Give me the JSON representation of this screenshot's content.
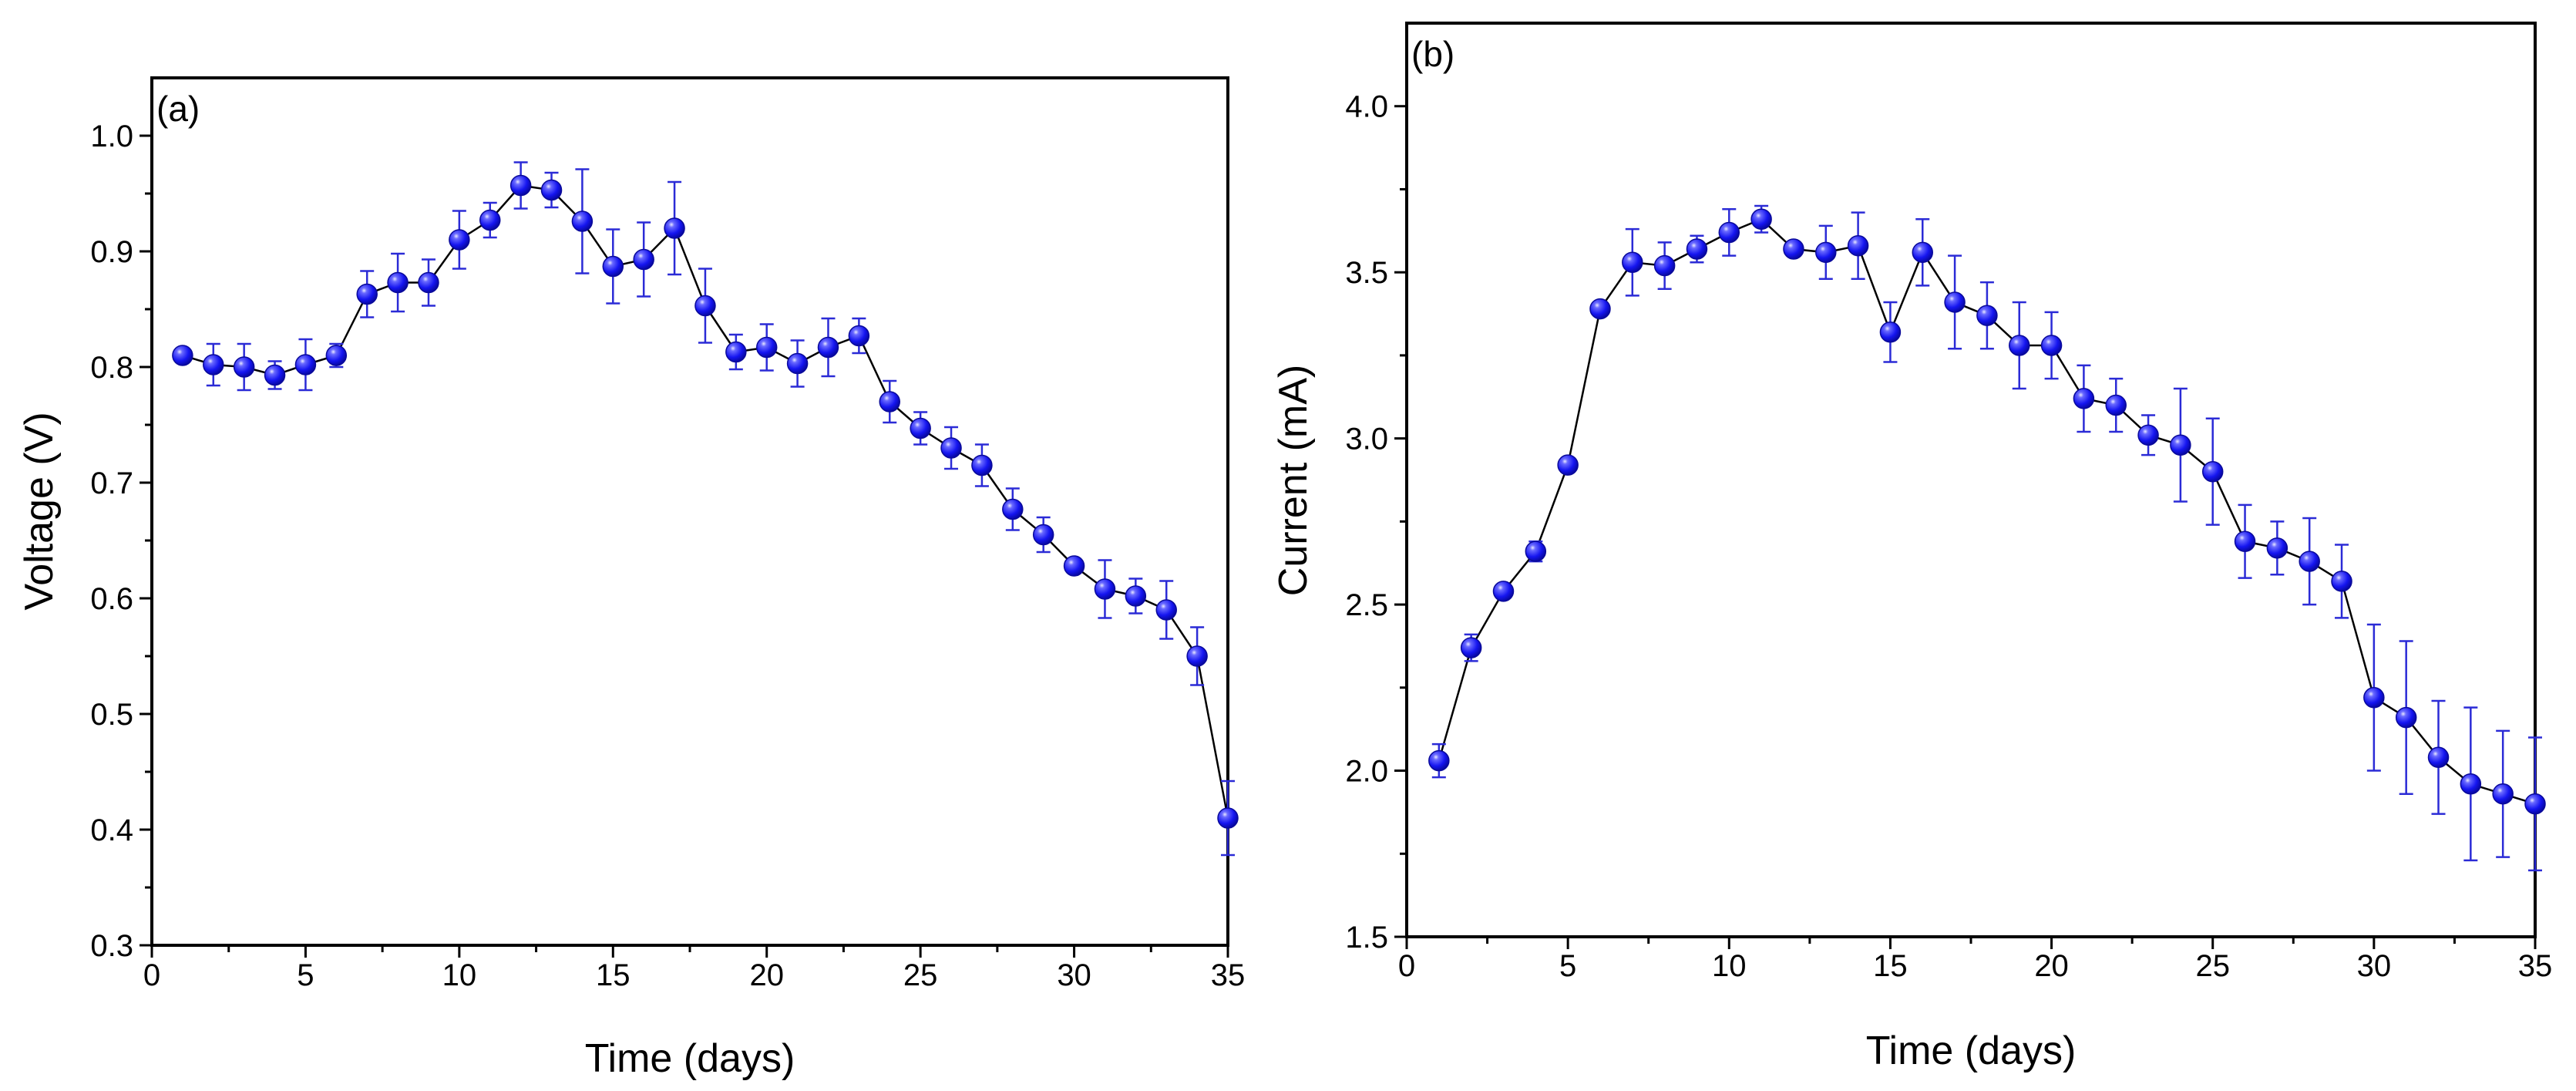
{
  "chart_data": [
    {
      "type": "line",
      "panel_label": "(a)",
      "title": "",
      "xlabel": "Time (days)",
      "ylabel": "Voltage (V)",
      "xlim": [
        0,
        35
      ],
      "ylim": [
        0.3,
        1.05
      ],
      "xticks": [
        0,
        5,
        10,
        15,
        20,
        25,
        30,
        35
      ],
      "xtick_labels": [
        "0",
        "5",
        "10",
        "15",
        "20",
        "25",
        "30",
        "35"
      ],
      "yticks": [
        0.3,
        0.4,
        0.5,
        0.6,
        0.7,
        0.8,
        0.9,
        1.0
      ],
      "ytick_labels": [
        "0.3",
        "0.4",
        "0.5",
        "0.6",
        "0.7",
        "0.8",
        "0.9",
        "1.0"
      ],
      "grid": false,
      "marker_color": "#1a1aff",
      "errorbar_color": "#2b2bd6",
      "line_color": "#000000",
      "series": [
        {
          "name": "Voltage",
          "x": [
            1,
            2,
            3,
            4,
            5,
            6,
            7,
            8,
            9,
            10,
            11,
            12,
            13,
            14,
            15,
            16,
            17,
            18,
            19,
            20,
            21,
            22,
            23,
            24,
            25,
            26,
            27,
            28,
            29,
            30,
            31,
            32,
            33,
            34,
            35
          ],
          "y": [
            0.81,
            0.802,
            0.8,
            0.793,
            0.802,
            0.81,
            0.863,
            0.873,
            0.873,
            0.91,
            0.927,
            0.957,
            0.953,
            0.926,
            0.887,
            0.893,
            0.92,
            0.853,
            0.813,
            0.817,
            0.803,
            0.817,
            0.827,
            0.77,
            0.747,
            0.73,
            0.715,
            0.677,
            0.655,
            0.628,
            0.608,
            0.602,
            0.59,
            0.55,
            0.41
          ],
          "err": [
            0.006,
            0.018,
            0.02,
            0.012,
            0.022,
            0.01,
            0.02,
            0.025,
            0.02,
            0.025,
            0.015,
            0.02,
            0.015,
            0.045,
            0.032,
            0.032,
            0.04,
            0.032,
            0.015,
            0.02,
            0.02,
            0.025,
            0.015,
            0.018,
            0.014,
            0.018,
            0.018,
            0.018,
            0.015,
            0.006,
            0.025,
            0.015,
            0.025,
            0.025,
            0.032
          ]
        }
      ]
    },
    {
      "type": "line",
      "panel_label": "(b)",
      "title": "",
      "xlabel": "Time (days)",
      "ylabel": "Current (mA)",
      "xlim": [
        0,
        35
      ],
      "ylim": [
        1.5,
        4.25
      ],
      "xticks": [
        0,
        5,
        10,
        15,
        20,
        25,
        30,
        35
      ],
      "xtick_labels": [
        "0",
        "5",
        "10",
        "15",
        "20",
        "25",
        "30",
        "35"
      ],
      "yticks": [
        1.5,
        2.0,
        2.5,
        3.0,
        3.5,
        4.0
      ],
      "ytick_labels": [
        "1.5",
        "2.0",
        "2.5",
        "3.0",
        "3.5",
        "4.0"
      ],
      "grid": false,
      "marker_color": "#1a1aff",
      "errorbar_color": "#2b2bd6",
      "line_color": "#000000",
      "series": [
        {
          "name": "Current",
          "x": [
            1,
            2,
            3,
            4,
            5,
            6,
            7,
            8,
            9,
            10,
            11,
            12,
            13,
            14,
            15,
            16,
            17,
            18,
            19,
            20,
            21,
            22,
            23,
            24,
            25,
            26,
            27,
            28,
            29,
            30,
            31,
            32,
            33,
            34,
            35
          ],
          "y": [
            2.03,
            2.37,
            2.54,
            2.66,
            2.92,
            3.39,
            3.53,
            3.52,
            3.57,
            3.62,
            3.66,
            3.57,
            3.56,
            3.58,
            3.32,
            3.56,
            3.41,
            3.37,
            3.28,
            3.28,
            3.12,
            3.1,
            3.01,
            2.98,
            2.9,
            2.69,
            2.67,
            2.63,
            2.57,
            2.22,
            2.16,
            2.04,
            1.96,
            1.93,
            1.9
          ],
          "err": [
            0.05,
            0.04,
            0.02,
            0.03,
            0.02,
            0.02,
            0.1,
            0.07,
            0.04,
            0.07,
            0.04,
            0.02,
            0.08,
            0.1,
            0.09,
            0.1,
            0.14,
            0.1,
            0.13,
            0.1,
            0.1,
            0.08,
            0.06,
            0.17,
            0.16,
            0.11,
            0.08,
            0.13,
            0.11,
            0.22,
            0.23,
            0.17,
            0.23,
            0.19,
            0.2
          ]
        }
      ]
    }
  ]
}
